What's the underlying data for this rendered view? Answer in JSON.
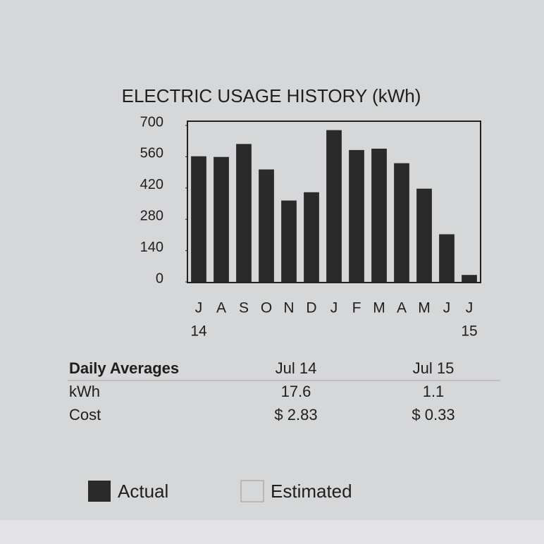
{
  "chart_data": {
    "type": "bar",
    "title": "ELECTRIC USAGE HISTORY (kWh)",
    "categories": [
      "J",
      "A",
      "S",
      "O",
      "N",
      "D",
      "J",
      "F",
      "M",
      "A",
      "M",
      "J",
      "J"
    ],
    "year_labels": [
      "14",
      null,
      null,
      null,
      null,
      null,
      null,
      null,
      null,
      null,
      null,
      null,
      "15"
    ],
    "series": [
      {
        "name": "Actual",
        "color": "#2a2a2a",
        "values": [
          562,
          559,
          617,
          503,
          364,
          401,
          679,
          590,
          596,
          531,
          417,
          213,
          31
        ]
      },
      {
        "name": "Estimated",
        "color": "#d6d7d9",
        "values": [
          null,
          null,
          null,
          null,
          null,
          null,
          null,
          null,
          null,
          null,
          null,
          null,
          null
        ]
      }
    ],
    "ylim": [
      0,
      700
    ],
    "yticks": [
      0,
      140,
      280,
      420,
      560,
      700
    ]
  },
  "table": {
    "header": [
      "Daily Averages",
      "Jul 14",
      "Jul 15"
    ],
    "rows": [
      [
        "kWh",
        "17.6",
        "1.1"
      ],
      [
        "Cost",
        "$ 2.83",
        "$ 0.33"
      ]
    ]
  }
}
